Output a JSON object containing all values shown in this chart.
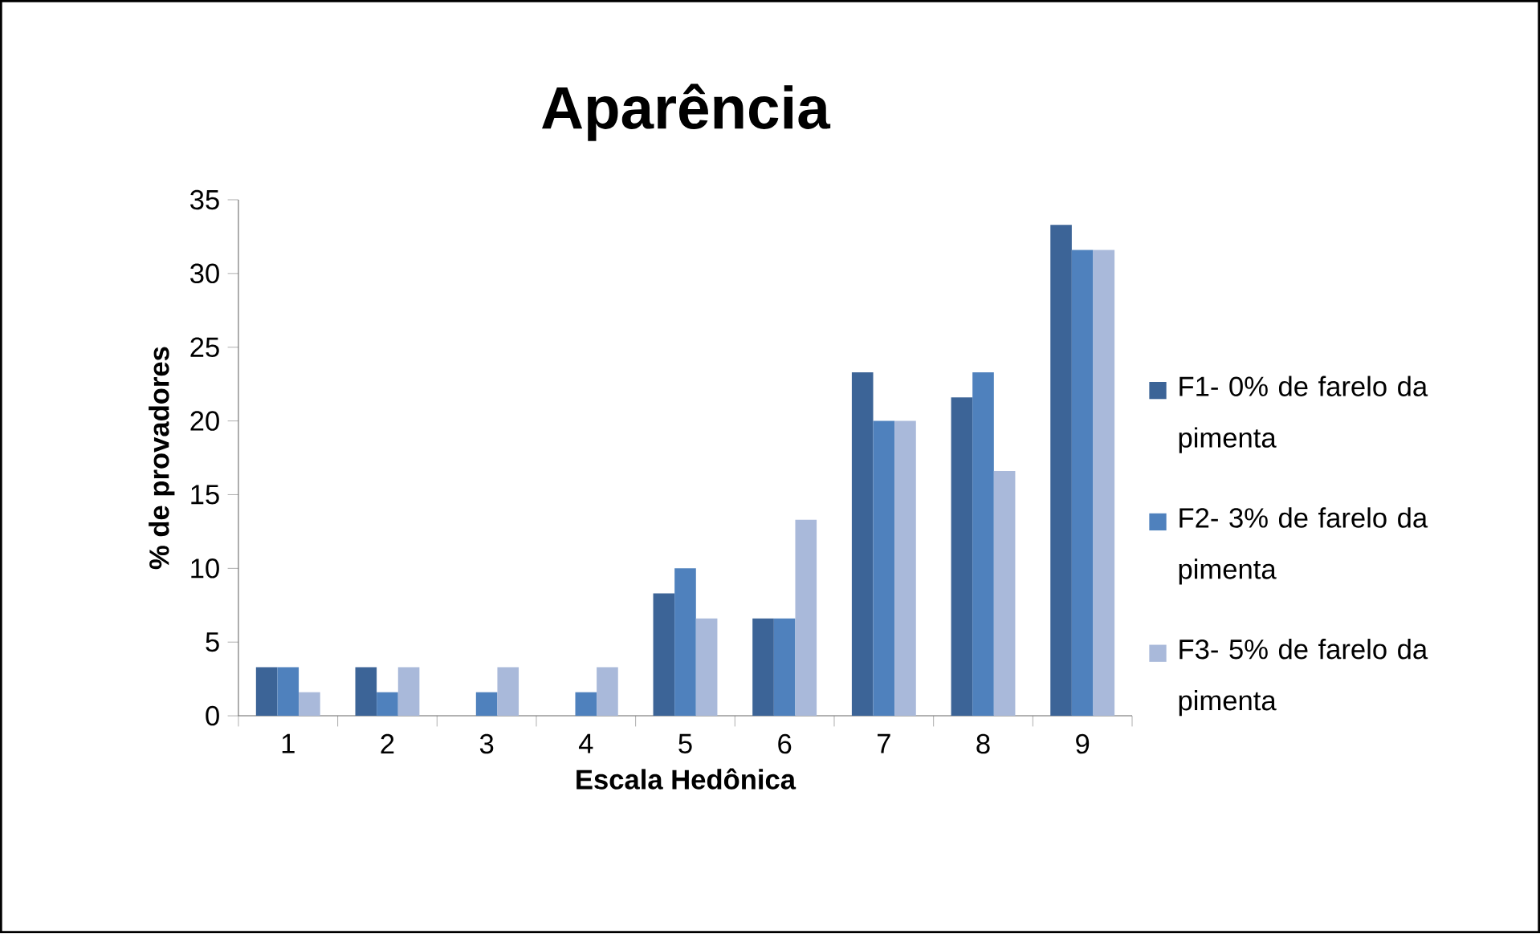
{
  "chart_data": {
    "type": "bar",
    "title": "Aparência",
    "xlabel": "Escala Hedônica",
    "ylabel": "% de provadores",
    "categories": [
      "1",
      "2",
      "3",
      "4",
      "5",
      "6",
      "7",
      "8",
      "9"
    ],
    "series": [
      {
        "name": "F1- 0% de farelo da pimenta",
        "color": "#3c6497",
        "values": [
          3.3,
          3.3,
          0,
          0,
          8.3,
          6.6,
          23.3,
          21.6,
          33.3
        ]
      },
      {
        "name": "F2- 3% de farelo da pimenta",
        "color": "#4f81bd",
        "values": [
          3.3,
          1.6,
          1.6,
          1.6,
          10,
          6.6,
          20,
          23.3,
          31.6
        ]
      },
      {
        "name": "F3- 5% de farelo da pimenta",
        "color": "#a9b9da",
        "values": [
          1.6,
          3.3,
          3.3,
          3.3,
          6.6,
          13.3,
          20,
          16.6,
          31.6
        ]
      }
    ],
    "ylim": [
      0,
      35
    ],
    "yticks": [
      0,
      5,
      10,
      15,
      20,
      25,
      30,
      35
    ],
    "legend": "right"
  }
}
